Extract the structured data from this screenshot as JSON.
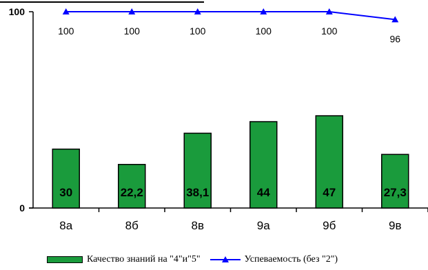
{
  "chart_data": {
    "type": "bar",
    "categories": [
      "8а",
      "8б",
      "8в",
      "9а",
      "9б",
      "9в"
    ],
    "ylim": [
      0,
      100
    ],
    "yticks": [
      "0",
      "100"
    ],
    "grid": false,
    "legend_position": "bottom",
    "series": [
      {
        "name": "Качество знаний  на \"4\"и\"5\"",
        "type": "bar",
        "color": "#1a9b3c",
        "values": [
          30,
          22.2,
          38.1,
          44,
          47,
          27.3
        ],
        "labels": [
          "30",
          "22,2",
          "38,1",
          "44",
          "47",
          "27,3"
        ]
      },
      {
        "name": "Успеваемость (без \"2\")",
        "type": "line",
        "color": "#0000ff",
        "marker": "triangle",
        "values": [
          100,
          100,
          100,
          100,
          100,
          96
        ],
        "labels": [
          "100",
          "100",
          "100",
          "100",
          "100",
          "96"
        ]
      }
    ]
  }
}
